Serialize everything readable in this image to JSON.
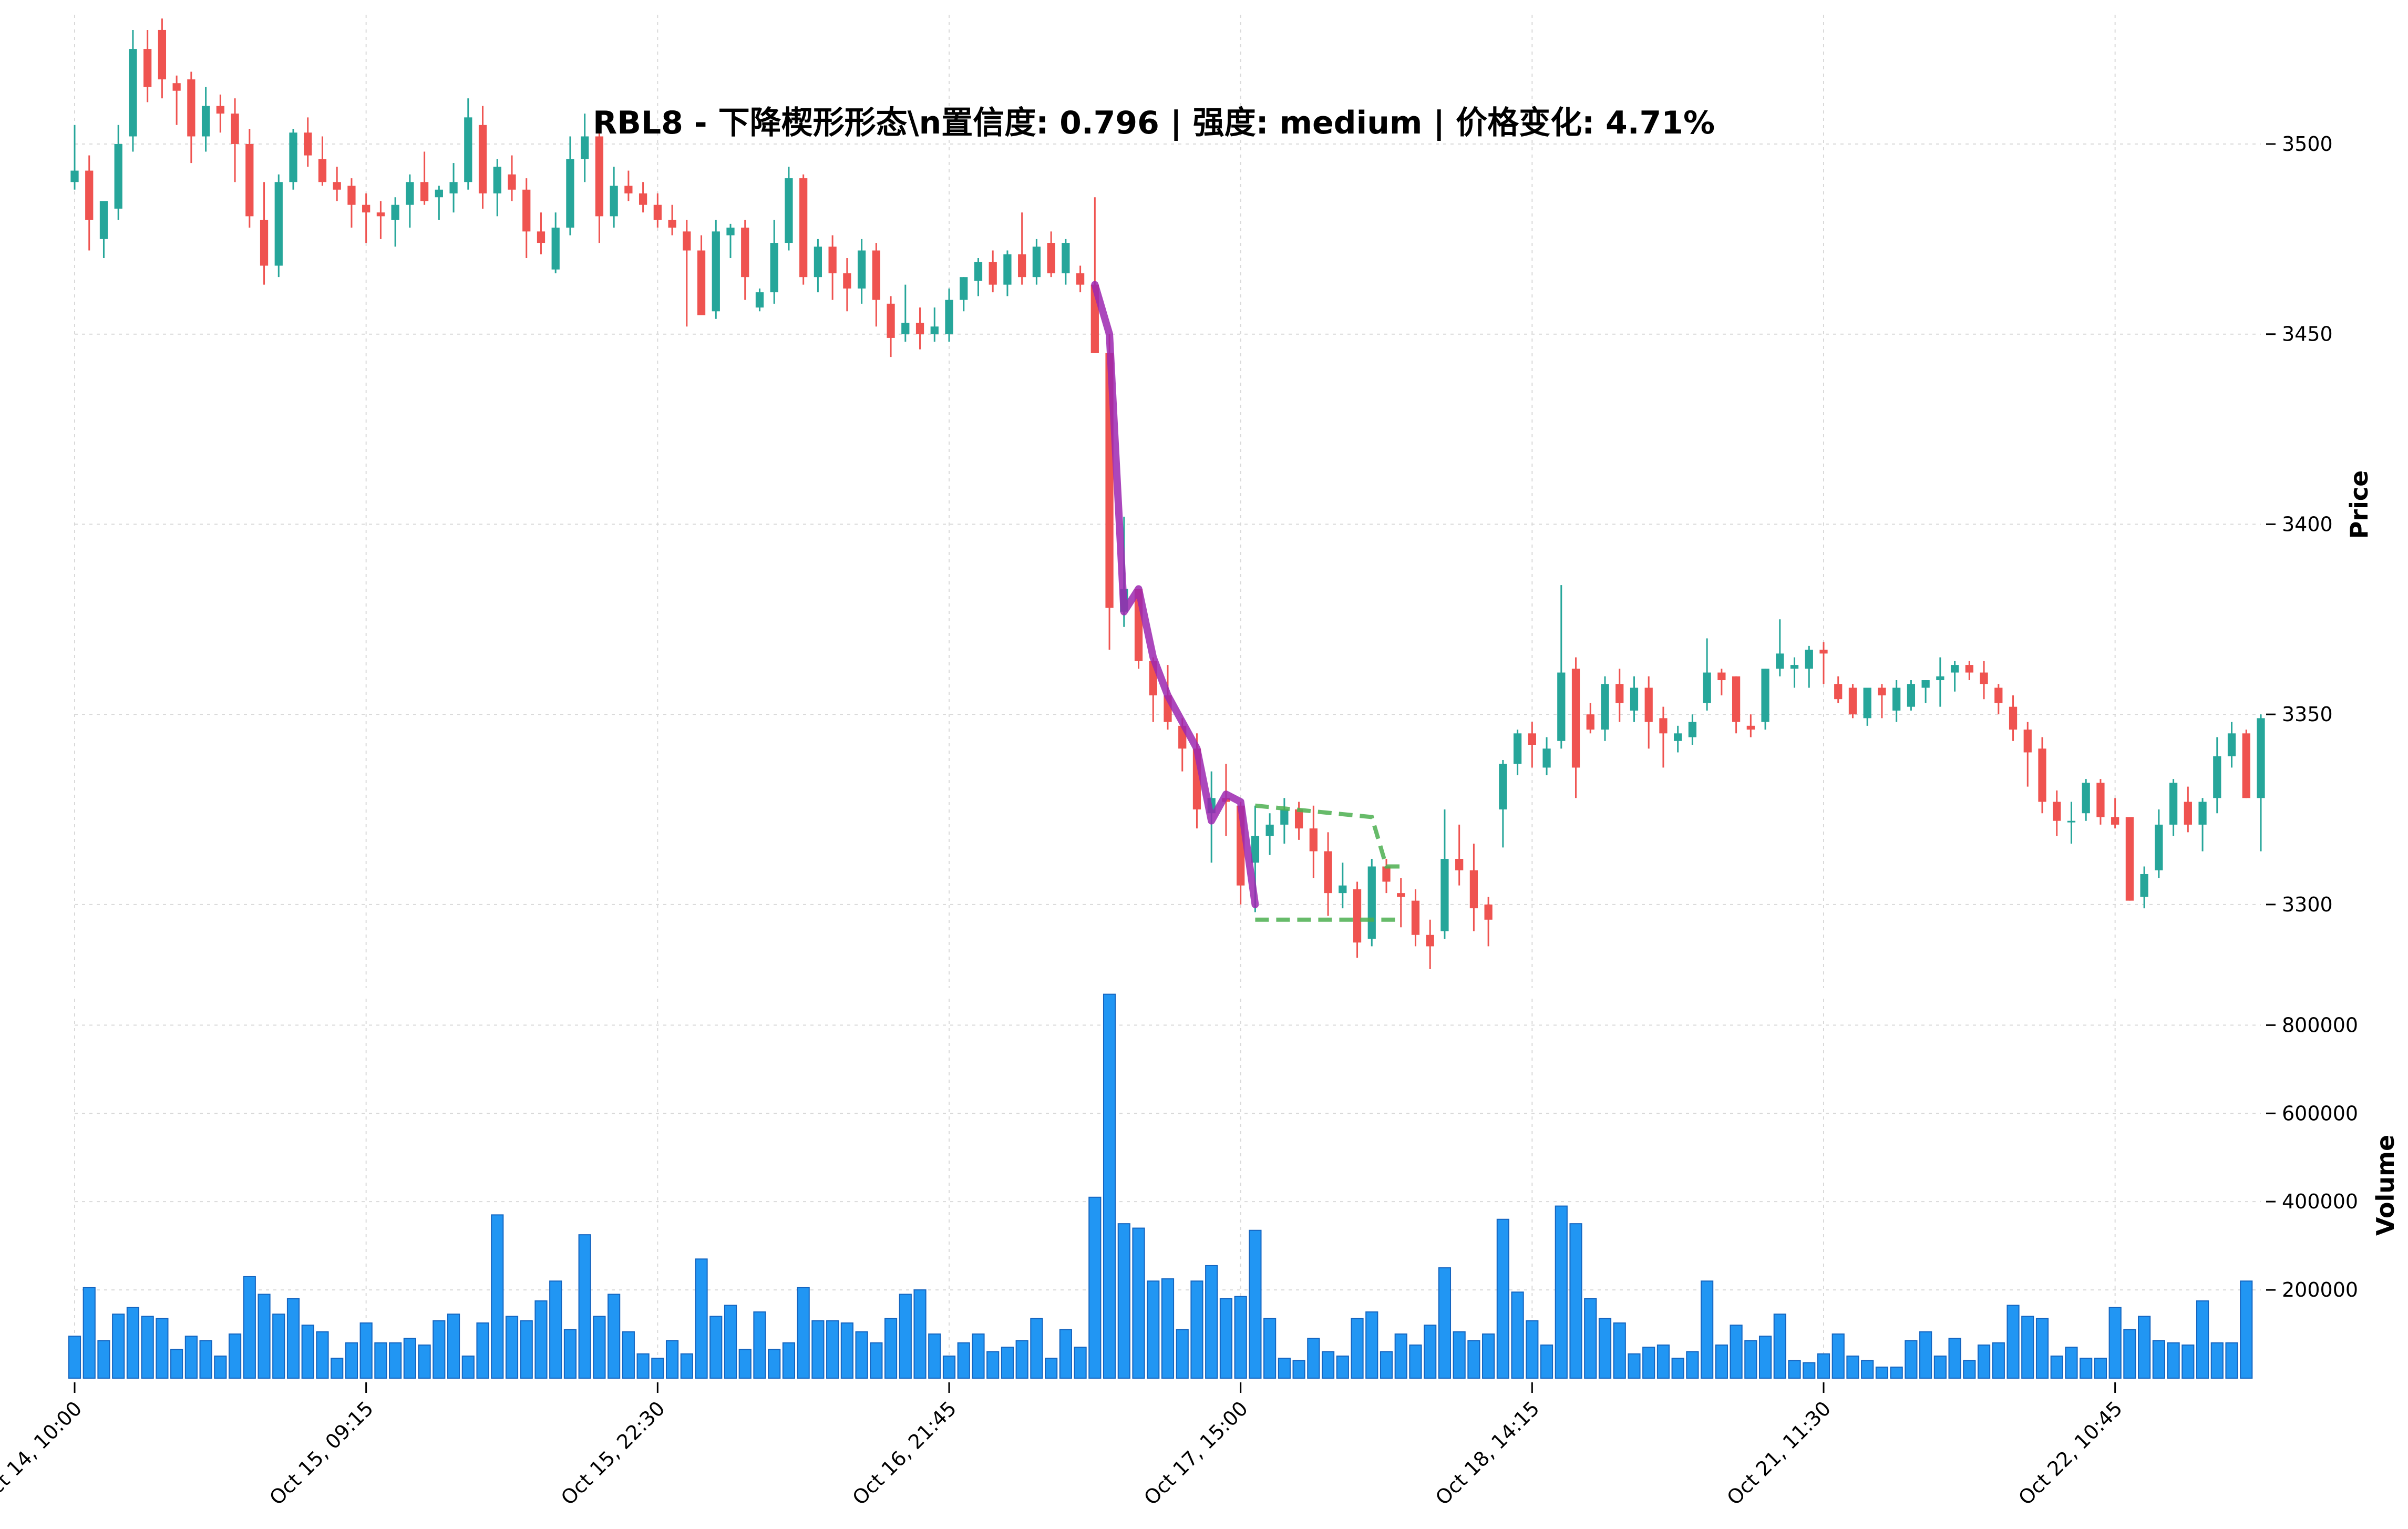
{
  "chart_data": {
    "type": "candlestick",
    "title": "RBL8 - 下降楔形形态\\n置信度: 0.796 | 强度: medium | 价格变化: 4.71%",
    "ylabel_price": "Price",
    "ylabel_volume": "Volume",
    "price_ylim": [
      3278,
      3534
    ],
    "price_ticks": [
      3300,
      3350,
      3400,
      3450,
      3500
    ],
    "volume_ylim": [
      0,
      860000
    ],
    "volume_ticks": [
      200000,
      400000,
      600000,
      800000
    ],
    "x_tick_labels": [
      "Oct 14, 10:00",
      "Oct 15, 09:15",
      "Oct 15, 22:30",
      "Oct 16, 21:45",
      "Oct 17, 15:00",
      "Oct 18, 14:15",
      "Oct 21, 11:30",
      "Oct 22, 10:45"
    ],
    "x_tick_index": [
      0,
      20,
      40,
      60,
      80,
      100,
      120,
      140
    ],
    "grid": true,
    "colors": {
      "up": "#26a69a",
      "down": "#ef5350",
      "volume": "#2196f3",
      "trend": "#9c27b0",
      "pattern": "#4caf50"
    },
    "ohlc": [
      [
        3490,
        3505,
        3488,
        3493
      ],
      [
        3493,
        3497,
        3472,
        3480
      ],
      [
        3475,
        3483,
        3470,
        3485
      ],
      [
        3483,
        3505,
        3480,
        3500
      ],
      [
        3502,
        3530,
        3498,
        3525
      ],
      [
        3525,
        3530,
        3511,
        3515
      ],
      [
        3530,
        3533,
        3512,
        3517
      ],
      [
        3516,
        3518,
        3505,
        3514
      ],
      [
        3517,
        3519,
        3495,
        3502
      ],
      [
        3502,
        3515,
        3498,
        3510
      ],
      [
        3510,
        3513,
        3503,
        3508
      ],
      [
        3508,
        3512,
        3490,
        3500
      ],
      [
        3500,
        3504,
        3478,
        3481
      ],
      [
        3480,
        3490,
        3463,
        3468
      ],
      [
        3468,
        3492,
        3465,
        3490
      ],
      [
        3490,
        3504,
        3488,
        3503
      ],
      [
        3503,
        3507,
        3494,
        3497
      ],
      [
        3496,
        3502,
        3489,
        3490
      ],
      [
        3490,
        3494,
        3485,
        3488
      ],
      [
        3489,
        3491,
        3478,
        3484
      ],
      [
        3484,
        3487,
        3474,
        3482
      ],
      [
        3482,
        3485,
        3475,
        3481
      ],
      [
        3480,
        3486,
        3473,
        3484
      ],
      [
        3484,
        3492,
        3478,
        3490
      ],
      [
        3490,
        3498,
        3484,
        3485
      ],
      [
        3486,
        3489,
        3480,
        3488
      ],
      [
        3487,
        3495,
        3482,
        3490
      ],
      [
        3490,
        3512,
        3488,
        3507
      ],
      [
        3505,
        3510,
        3483,
        3487
      ],
      [
        3487,
        3496,
        3481,
        3494
      ],
      [
        3492,
        3497,
        3485,
        3488
      ],
      [
        3488,
        3491,
        3470,
        3477
      ],
      [
        3477,
        3482,
        3471,
        3474
      ],
      [
        3467,
        3482,
        3466,
        3478
      ],
      [
        3478,
        3502,
        3476,
        3496
      ],
      [
        3496,
        3508,
        3490,
        3502
      ],
      [
        3502,
        3504,
        3474,
        3481
      ],
      [
        3481,
        3494,
        3478,
        3489
      ],
      [
        3489,
        3493,
        3485,
        3487
      ],
      [
        3487,
        3490,
        3482,
        3484
      ],
      [
        3484,
        3487,
        3478,
        3480
      ],
      [
        3480,
        3484,
        3476,
        3478
      ],
      [
        3477,
        3480,
        3452,
        3472
      ],
      [
        3472,
        3476,
        3455,
        3455
      ],
      [
        3456,
        3480,
        3454,
        3477
      ],
      [
        3476,
        3479,
        3470,
        3478
      ],
      [
        3478,
        3480,
        3459,
        3465
      ],
      [
        3457,
        3462,
        3456,
        3461
      ],
      [
        3461,
        3480,
        3458,
        3474
      ],
      [
        3474,
        3494,
        3472,
        3491
      ],
      [
        3491,
        3492,
        3463,
        3465
      ],
      [
        3465,
        3475,
        3461,
        3473
      ],
      [
        3473,
        3476,
        3459,
        3466
      ],
      [
        3466,
        3470,
        3456,
        3462
      ],
      [
        3462,
        3475,
        3458,
        3472
      ],
      [
        3472,
        3474,
        3452,
        3459
      ],
      [
        3458,
        3460,
        3444,
        3449
      ],
      [
        3450,
        3463,
        3448,
        3453
      ],
      [
        3453,
        3457,
        3446,
        3450
      ],
      [
        3450,
        3457,
        3448,
        3452
      ],
      [
        3450,
        3462,
        3448,
        3459
      ],
      [
        3459,
        3465,
        3456,
        3465
      ],
      [
        3464,
        3470,
        3460,
        3469
      ],
      [
        3469,
        3472,
        3461,
        3463
      ],
      [
        3463,
        3472,
        3460,
        3471
      ],
      [
        3471,
        3482,
        3463,
        3465
      ],
      [
        3465,
        3475,
        3463,
        3473
      ],
      [
        3474,
        3477,
        3465,
        3466
      ],
      [
        3466,
        3475,
        3463,
        3474
      ],
      [
        3466,
        3468,
        3461,
        3463
      ],
      [
        3463,
        3486,
        3445,
        3445
      ],
      [
        3445,
        3450,
        3367,
        3378
      ],
      [
        3377,
        3402,
        3373,
        3383
      ],
      [
        3383,
        3383,
        3362,
        3364
      ],
      [
        3364,
        3365,
        3348,
        3355
      ],
      [
        3355,
        3363,
        3346,
        3348
      ],
      [
        3347,
        3349,
        3335,
        3341
      ],
      [
        3341,
        3345,
        3320,
        3325
      ],
      [
        3324,
        3335,
        3311,
        3328
      ],
      [
        3328,
        3337,
        3318,
        3327
      ],
      [
        3326,
        3327,
        3300,
        3305
      ],
      [
        3311,
        3326,
        3298,
        3318
      ],
      [
        3318,
        3324,
        3313,
        3321
      ],
      [
        3321,
        3328,
        3316,
        3325
      ],
      [
        3325,
        3327,
        3317,
        3320
      ],
      [
        3320,
        3326,
        3307,
        3314
      ],
      [
        3314,
        3319,
        3297,
        3303
      ],
      [
        3303,
        3311,
        3299,
        3305
      ],
      [
        3304,
        3306,
        3286,
        3290
      ],
      [
        3291,
        3312,
        3289,
        3310
      ],
      [
        3310,
        3312,
        3303,
        3306
      ],
      [
        3303,
        3307,
        3294,
        3302
      ],
      [
        3301,
        3304,
        3289,
        3292
      ],
      [
        3292,
        3296,
        3283,
        3289
      ],
      [
        3293,
        3325,
        3291,
        3312
      ],
      [
        3312,
        3321,
        3305,
        3309
      ],
      [
        3309,
        3316,
        3293,
        3299
      ],
      [
        3300,
        3302,
        3289,
        3296
      ],
      [
        3325,
        3338,
        3315,
        3337
      ],
      [
        3337,
        3346,
        3334,
        3345
      ],
      [
        3345,
        3348,
        3336,
        3342
      ],
      [
        3336,
        3344,
        3334,
        3341
      ],
      [
        3343,
        3384,
        3341,
        3361
      ],
      [
        3362,
        3365,
        3328,
        3336
      ],
      [
        3350,
        3353,
        3345,
        3346
      ],
      [
        3346,
        3360,
        3343,
        3358
      ],
      [
        3358,
        3362,
        3348,
        3353
      ],
      [
        3351,
        3360,
        3348,
        3357
      ],
      [
        3357,
        3360,
        3341,
        3348
      ],
      [
        3349,
        3352,
        3336,
        3345
      ],
      [
        3343,
        3347,
        3340,
        3345
      ],
      [
        3344,
        3350,
        3342,
        3348
      ],
      [
        3353,
        3370,
        3351,
        3361
      ],
      [
        3361,
        3362,
        3355,
        3359
      ],
      [
        3360,
        3360,
        3345,
        3348
      ],
      [
        3347,
        3350,
        3344,
        3346
      ],
      [
        3348,
        3362,
        3346,
        3362
      ],
      [
        3362,
        3375,
        3360,
        3366
      ],
      [
        3362,
        3365,
        3357,
        3363
      ],
      [
        3362,
        3368,
        3357,
        3367
      ],
      [
        3367,
        3369,
        3358,
        3366
      ],
      [
        3358,
        3360,
        3353,
        3354
      ],
      [
        3357,
        3358,
        3349,
        3350
      ],
      [
        3349,
        3357,
        3347,
        3357
      ],
      [
        3357,
        3358,
        3349,
        3355
      ],
      [
        3351,
        3359,
        3348,
        3357
      ],
      [
        3352,
        3359,
        3351,
        3358
      ],
      [
        3357,
        3359,
        3353,
        3359
      ],
      [
        3359,
        3365,
        3352,
        3360
      ],
      [
        3361,
        3364,
        3356,
        3363
      ],
      [
        3363,
        3364,
        3359,
        3361
      ],
      [
        3361,
        3364,
        3354,
        3358
      ],
      [
        3357,
        3358,
        3350,
        3353
      ],
      [
        3352,
        3355,
        3343,
        3346
      ],
      [
        3346,
        3348,
        3331,
        3340
      ],
      [
        3341,
        3344,
        3324,
        3327
      ],
      [
        3327,
        3330,
        3318,
        3322
      ],
      [
        3322,
        3327,
        3316,
        3322
      ],
      [
        3324,
        3333,
        3322,
        3332
      ],
      [
        3332,
        3333,
        3321,
        3323
      ],
      [
        3323,
        3328,
        3320,
        3321
      ],
      [
        3323,
        3323,
        3301,
        3301
      ],
      [
        3302,
        3310,
        3299,
        3308
      ],
      [
        3309,
        3325,
        3307,
        3321
      ],
      [
        3321,
        3333,
        3318,
        3332
      ],
      [
        3327,
        3331,
        3319,
        3321
      ],
      [
        3321,
        3328,
        3314,
        3327
      ],
      [
        3328,
        3344,
        3324,
        3339
      ],
      [
        3339,
        3348,
        3336,
        3345
      ],
      [
        3345,
        3346,
        3328,
        3328
      ],
      [
        3328,
        3350,
        3314,
        3349
      ]
    ],
    "volume": [
      95000,
      205000,
      85000,
      145000,
      160000,
      140000,
      135000,
      65000,
      95000,
      85000,
      50000,
      100000,
      230000,
      190000,
      145000,
      180000,
      120000,
      105000,
      45000,
      80000,
      125000,
      80000,
      80000,
      90000,
      75000,
      130000,
      145000,
      50000,
      125000,
      370000,
      140000,
      130000,
      175000,
      220000,
      110000,
      325000,
      140000,
      190000,
      105000,
      55000,
      45000,
      85000,
      55000,
      270000,
      140000,
      165000,
      65000,
      150000,
      65000,
      80000,
      205000,
      130000,
      130000,
      125000,
      105000,
      80000,
      135000,
      190000,
      200000,
      100000,
      50000,
      80000,
      100000,
      60000,
      70000,
      85000,
      135000,
      45000,
      110000,
      70000,
      410000,
      870000,
      350000,
      340000,
      220000,
      225000,
      110000,
      220000,
      255000,
      180000,
      185000,
      335000,
      135000,
      45000,
      40000,
      90000,
      60000,
      50000,
      135000,
      150000,
      60000,
      100000,
      75000,
      120000,
      250000,
      105000,
      85000,
      100000,
      360000,
      195000,
      130000,
      75000,
      390000,
      350000,
      180000,
      135000,
      125000,
      55000,
      70000,
      75000,
      45000,
      60000,
      220000,
      75000,
      120000,
      85000,
      95000,
      145000,
      40000,
      35000,
      55000,
      100000,
      50000,
      40000,
      25000,
      25000,
      85000,
      105000,
      50000,
      90000,
      40000,
      75000,
      80000,
      165000,
      140000,
      135000,
      50000,
      70000,
      45000,
      45000,
      160000,
      110000,
      140000,
      85000,
      80000,
      75000,
      175000,
      80000,
      80000,
      220000
    ],
    "trend_line": [
      [
        70,
        3463
      ],
      [
        71,
        3450
      ],
      [
        72,
        3377
      ],
      [
        73,
        3383
      ],
      [
        74,
        3365
      ],
      [
        75,
        3355
      ],
      [
        76,
        3348
      ],
      [
        77,
        3341
      ],
      [
        78,
        3322
      ],
      [
        79,
        3329
      ],
      [
        80,
        3327
      ],
      [
        81,
        3300
      ]
    ],
    "wedge_upper": [
      [
        81,
        3326
      ],
      [
        89,
        3323
      ],
      [
        90,
        3310
      ],
      [
        91,
        3310
      ]
    ],
    "wedge_lower": [
      [
        81,
        3296
      ],
      [
        91,
        3296
      ]
    ]
  }
}
